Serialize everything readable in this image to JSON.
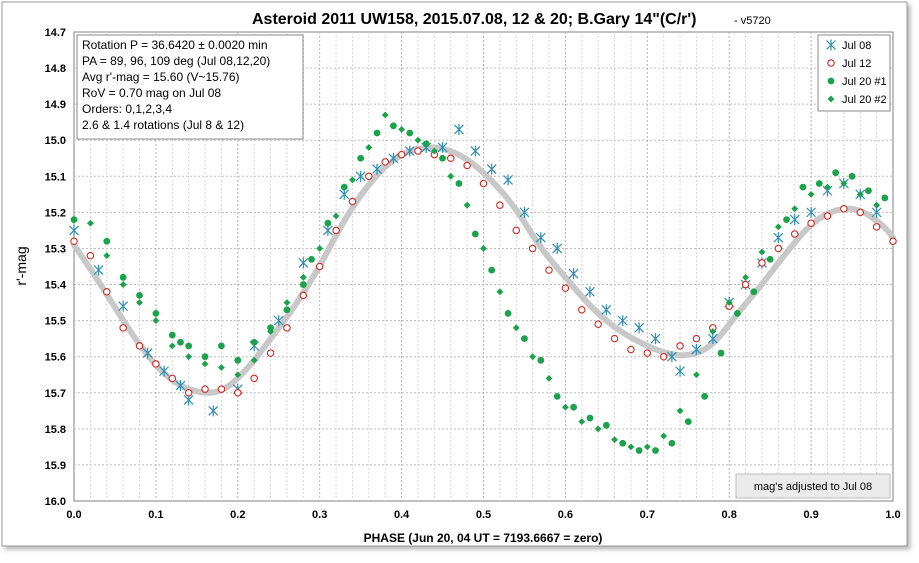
{
  "chart_data": {
    "type": "scatter",
    "title": "Asteroid 2011 UW158, 2015.07.08, 12 & 20; B.Gary 14\"(C/r')",
    "title_suffix": "- v5720",
    "xlabel": "PHASE (Jun 20, 04 UT = 7193.6667 = zero)",
    "ylabel": "r'-mag",
    "xlim": [
      0.0,
      1.0
    ],
    "ylim": [
      14.7,
      16.0
    ],
    "y_inverted": true,
    "grid": true,
    "x_ticks": [
      "0.0",
      "0.1",
      "0.2",
      "0.3",
      "0.4",
      "0.5",
      "0.6",
      "0.7",
      "0.8",
      "0.9",
      "1.0"
    ],
    "y_ticks": [
      "14.7",
      "14.8",
      "14.9",
      "15.0",
      "15.1",
      "15.2",
      "15.3",
      "15.4",
      "15.5",
      "15.6",
      "15.7",
      "15.8",
      "15.9",
      "16.0"
    ],
    "legend_position": "top-right",
    "info_box": [
      "Rotation P = 36.6420 ± 0.0020 min",
      "PA =  89, 96, 109 deg  (Jul 08,12,20)",
      "Avg r'-mag = 15.60 (V~15.76)",
      "RoV = 0.70 mag on Jul 08",
      "Orders: 0,1,2,3,4",
      "2.6 & 1.4 rotations (Jul 8 & 12)"
    ],
    "note": "mag's adjusted to Jul 08",
    "fit_curve": {
      "color": "#c8c8c8",
      "points": [
        [
          0.0,
          15.29
        ],
        [
          0.03,
          15.39
        ],
        [
          0.06,
          15.5
        ],
        [
          0.09,
          15.6
        ],
        [
          0.12,
          15.67
        ],
        [
          0.15,
          15.7
        ],
        [
          0.18,
          15.7
        ],
        [
          0.21,
          15.64
        ],
        [
          0.24,
          15.55
        ],
        [
          0.27,
          15.46
        ],
        [
          0.3,
          15.35
        ],
        [
          0.33,
          15.22
        ],
        [
          0.36,
          15.12
        ],
        [
          0.39,
          15.05
        ],
        [
          0.42,
          15.02
        ],
        [
          0.45,
          15.02
        ],
        [
          0.48,
          15.05
        ],
        [
          0.51,
          15.11
        ],
        [
          0.54,
          15.19
        ],
        [
          0.57,
          15.3
        ],
        [
          0.6,
          15.38
        ],
        [
          0.63,
          15.46
        ],
        [
          0.66,
          15.52
        ],
        [
          0.69,
          15.56
        ],
        [
          0.72,
          15.59
        ],
        [
          0.75,
          15.6
        ],
        [
          0.78,
          15.57
        ],
        [
          0.81,
          15.48
        ],
        [
          0.84,
          15.4
        ],
        [
          0.87,
          15.31
        ],
        [
          0.9,
          15.23
        ],
        [
          0.93,
          15.19
        ],
        [
          0.96,
          15.19
        ],
        [
          0.99,
          15.24
        ],
        [
          1.0,
          15.27
        ]
      ]
    },
    "series": [
      {
        "name": "Jul 08",
        "marker": "asterisk",
        "color": "#2f8fb5",
        "points": [
          [
            0.0,
            15.25
          ],
          [
            0.03,
            15.36
          ],
          [
            0.06,
            15.46
          ],
          [
            0.09,
            15.59
          ],
          [
            0.11,
            15.64
          ],
          [
            0.13,
            15.68
          ],
          [
            0.14,
            15.72
          ],
          [
            0.17,
            15.75
          ],
          [
            0.2,
            15.69
          ],
          [
            0.22,
            15.57
          ],
          [
            0.25,
            15.5
          ],
          [
            0.28,
            15.34
          ],
          [
            0.31,
            15.25
          ],
          [
            0.33,
            15.15
          ],
          [
            0.35,
            15.1
          ],
          [
            0.37,
            15.08
          ],
          [
            0.39,
            15.05
          ],
          [
            0.41,
            15.03
          ],
          [
            0.43,
            15.02
          ],
          [
            0.45,
            15.02
          ],
          [
            0.47,
            14.97
          ],
          [
            0.49,
            15.03
          ],
          [
            0.51,
            15.08
          ],
          [
            0.53,
            15.11
          ],
          [
            0.55,
            15.2
          ],
          [
            0.57,
            15.27
          ],
          [
            0.59,
            15.3
          ],
          [
            0.61,
            15.37
          ],
          [
            0.63,
            15.42
          ],
          [
            0.65,
            15.47
          ],
          [
            0.67,
            15.5
          ],
          [
            0.69,
            15.52
          ],
          [
            0.71,
            15.55
          ],
          [
            0.73,
            15.6
          ],
          [
            0.74,
            15.64
          ],
          [
            0.76,
            15.58
          ],
          [
            0.78,
            15.55
          ],
          [
            0.8,
            15.45
          ],
          [
            0.82,
            15.4
          ],
          [
            0.84,
            15.34
          ],
          [
            0.86,
            15.27
          ],
          [
            0.88,
            15.22
          ],
          [
            0.9,
            15.2
          ],
          [
            0.92,
            15.14
          ],
          [
            0.94,
            15.12
          ],
          [
            0.96,
            15.15
          ],
          [
            0.98,
            15.2
          ]
        ]
      },
      {
        "name": "Jul 12",
        "marker": "open-circle",
        "color": "#d8281e",
        "points": [
          [
            0.0,
            15.28
          ],
          [
            0.02,
            15.32
          ],
          [
            0.04,
            15.42
          ],
          [
            0.06,
            15.52
          ],
          [
            0.08,
            15.57
          ],
          [
            0.1,
            15.62
          ],
          [
            0.12,
            15.66
          ],
          [
            0.14,
            15.7
          ],
          [
            0.16,
            15.69
          ],
          [
            0.18,
            15.69
          ],
          [
            0.2,
            15.7
          ],
          [
            0.22,
            15.66
          ],
          [
            0.24,
            15.59
          ],
          [
            0.26,
            15.52
          ],
          [
            0.28,
            15.43
          ],
          [
            0.3,
            15.35
          ],
          [
            0.32,
            15.25
          ],
          [
            0.34,
            15.17
          ],
          [
            0.36,
            15.1
          ],
          [
            0.38,
            15.06
          ],
          [
            0.4,
            15.04
          ],
          [
            0.42,
            15.03
          ],
          [
            0.44,
            15.04
          ],
          [
            0.46,
            15.05
          ],
          [
            0.48,
            15.07
          ],
          [
            0.5,
            15.12
          ],
          [
            0.52,
            15.18
          ],
          [
            0.54,
            15.25
          ],
          [
            0.56,
            15.3
          ],
          [
            0.58,
            15.36
          ],
          [
            0.6,
            15.41
          ],
          [
            0.62,
            15.47
          ],
          [
            0.64,
            15.51
          ],
          [
            0.66,
            15.55
          ],
          [
            0.68,
            15.58
          ],
          [
            0.7,
            15.59
          ],
          [
            0.72,
            15.6
          ],
          [
            0.74,
            15.57
          ],
          [
            0.76,
            15.55
          ],
          [
            0.78,
            15.52
          ],
          [
            0.8,
            15.46
          ],
          [
            0.82,
            15.4
          ],
          [
            0.84,
            15.34
          ],
          [
            0.86,
            15.3
          ],
          [
            0.88,
            15.26
          ],
          [
            0.9,
            15.23
          ],
          [
            0.92,
            15.21
          ],
          [
            0.94,
            15.19
          ],
          [
            0.96,
            15.2
          ],
          [
            0.98,
            15.24
          ],
          [
            1.0,
            15.28
          ]
        ]
      },
      {
        "name": "Jul 20 #1",
        "marker": "filled-circle",
        "color": "#1aa34a",
        "points": [
          [
            0.0,
            15.22
          ],
          [
            0.04,
            15.28
          ],
          [
            0.06,
            15.38
          ],
          [
            0.08,
            15.43
          ],
          [
            0.1,
            15.48
          ],
          [
            0.12,
            15.54
          ],
          [
            0.13,
            15.56
          ],
          [
            0.14,
            15.57
          ],
          [
            0.16,
            15.6
          ],
          [
            0.18,
            15.57
          ],
          [
            0.2,
            15.61
          ],
          [
            0.22,
            15.56
          ],
          [
            0.24,
            15.52
          ],
          [
            0.26,
            15.47
          ],
          [
            0.28,
            15.4
          ],
          [
            0.29,
            15.33
          ],
          [
            0.31,
            15.23
          ],
          [
            0.33,
            15.13
          ],
          [
            0.35,
            15.05
          ],
          [
            0.37,
            14.98
          ],
          [
            0.39,
            14.96
          ],
          [
            0.41,
            14.98
          ],
          [
            0.43,
            15.01
          ],
          [
            0.45,
            15.05
          ],
          [
            0.47,
            15.12
          ],
          [
            0.49,
            15.26
          ],
          [
            0.51,
            15.36
          ],
          [
            0.53,
            15.48
          ],
          [
            0.55,
            15.55
          ],
          [
            0.57,
            15.61
          ],
          [
            0.59,
            15.71
          ],
          [
            0.61,
            15.74
          ],
          [
            0.63,
            15.77
          ],
          [
            0.65,
            15.79
          ],
          [
            0.67,
            15.84
          ],
          [
            0.69,
            15.86
          ],
          [
            0.71,
            15.86
          ],
          [
            0.73,
            15.84
          ],
          [
            0.75,
            15.78
          ],
          [
            0.77,
            15.71
          ],
          [
            0.79,
            15.59
          ],
          [
            0.81,
            15.48
          ],
          [
            0.83,
            15.42
          ],
          [
            0.85,
            15.33
          ],
          [
            0.87,
            15.22
          ],
          [
            0.89,
            15.13
          ],
          [
            0.91,
            15.12
          ],
          [
            0.93,
            15.09
          ],
          [
            0.95,
            15.1
          ],
          [
            0.97,
            15.14
          ],
          [
            0.99,
            15.16
          ]
        ]
      },
      {
        "name": "Jul 20 #2",
        "marker": "diamond",
        "color": "#1aa34a",
        "points": [
          [
            0.02,
            15.23
          ],
          [
            0.04,
            15.32
          ],
          [
            0.06,
            15.4
          ],
          [
            0.08,
            15.45
          ],
          [
            0.1,
            15.5
          ],
          [
            0.12,
            15.57
          ],
          [
            0.14,
            15.6
          ],
          [
            0.16,
            15.62
          ],
          [
            0.18,
            15.63
          ],
          [
            0.2,
            15.65
          ],
          [
            0.22,
            15.61
          ],
          [
            0.24,
            15.53
          ],
          [
            0.26,
            15.45
          ],
          [
            0.28,
            15.38
          ],
          [
            0.3,
            15.3
          ],
          [
            0.32,
            15.21
          ],
          [
            0.34,
            15.11
          ],
          [
            0.36,
            15.02
          ],
          [
            0.38,
            14.93
          ],
          [
            0.4,
            14.97
          ],
          [
            0.42,
            15.0
          ],
          [
            0.44,
            15.03
          ],
          [
            0.46,
            15.1
          ],
          [
            0.48,
            15.18
          ],
          [
            0.5,
            15.3
          ],
          [
            0.52,
            15.42
          ],
          [
            0.54,
            15.52
          ],
          [
            0.56,
            15.6
          ],
          [
            0.58,
            15.66
          ],
          [
            0.6,
            15.74
          ],
          [
            0.62,
            15.78
          ],
          [
            0.64,
            15.8
          ],
          [
            0.66,
            15.83
          ],
          [
            0.68,
            15.85
          ],
          [
            0.7,
            15.85
          ],
          [
            0.72,
            15.82
          ],
          [
            0.74,
            15.75
          ],
          [
            0.76,
            15.65
          ],
          [
            0.78,
            15.53
          ],
          [
            0.8,
            15.45
          ],
          [
            0.82,
            15.38
          ],
          [
            0.84,
            15.31
          ],
          [
            0.86,
            15.24
          ],
          [
            0.88,
            15.19
          ],
          [
            0.9,
            15.15
          ],
          [
            0.92,
            15.13
          ],
          [
            0.94,
            15.12
          ],
          [
            0.96,
            15.15
          ],
          [
            0.98,
            15.18
          ]
        ]
      }
    ]
  }
}
